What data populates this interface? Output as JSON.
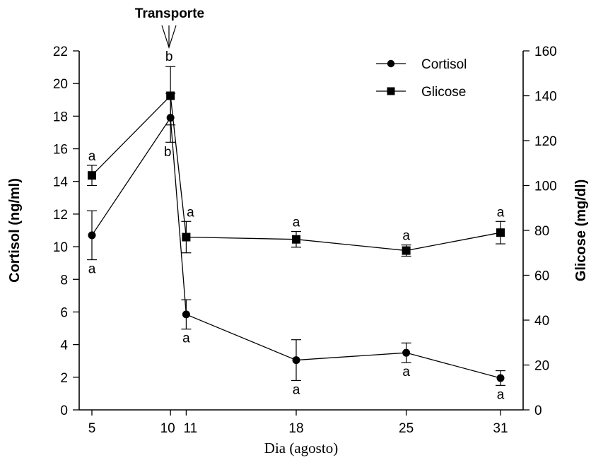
{
  "chart_data": {
    "type": "line",
    "title": "",
    "annotation": "Transporte",
    "xlabel": "Dia (agosto)",
    "ylabel_left": "Cortisol (ng/ml)",
    "ylabel_right": "Glicose (mg/dl)",
    "x_ticks": [
      "5",
      "10",
      "11",
      "18",
      "25",
      "31"
    ],
    "x_values": [
      5,
      10,
      11,
      18,
      25,
      31
    ],
    "xlim": [
      5,
      31
    ],
    "ylim_left": [
      0,
      22
    ],
    "ylim_right": [
      0,
      160
    ],
    "yticks_left": [
      "0",
      "2",
      "4",
      "6",
      "8",
      "10",
      "12",
      "14",
      "16",
      "18",
      "20",
      "22"
    ],
    "yticks_right": [
      "0",
      "20",
      "40",
      "60",
      "80",
      "100",
      "120",
      "140",
      "160"
    ],
    "legend_position": "top-right",
    "grid": false,
    "series": [
      {
        "name": "Cortisol",
        "axis": "left",
        "marker": "circle",
        "x": [
          5,
          10,
          11,
          18,
          25,
          31
        ],
        "values": [
          10.7,
          17.9,
          5.85,
          3.05,
          3.5,
          1.95
        ],
        "error": [
          1.5,
          1.5,
          0.9,
          1.25,
          0.6,
          0.45
        ],
        "labels": [
          "a",
          "b",
          "a",
          "a",
          "a",
          "a"
        ],
        "label_side": [
          "below",
          "below",
          "below",
          "below",
          "below",
          "below"
        ]
      },
      {
        "name": "Glicose",
        "axis": "right",
        "marker": "square",
        "x": [
          5,
          10,
          11,
          18,
          25,
          31
        ],
        "values": [
          104.5,
          140,
          77,
          76,
          71,
          79
        ],
        "error": [
          4.5,
          13,
          7,
          3.5,
          2.5,
          5
        ],
        "labels": [
          "a",
          "b",
          "a",
          "a",
          "a",
          "a"
        ],
        "label_side": [
          "above",
          "above",
          "above",
          "above",
          "above",
          "above"
        ]
      }
    ]
  }
}
